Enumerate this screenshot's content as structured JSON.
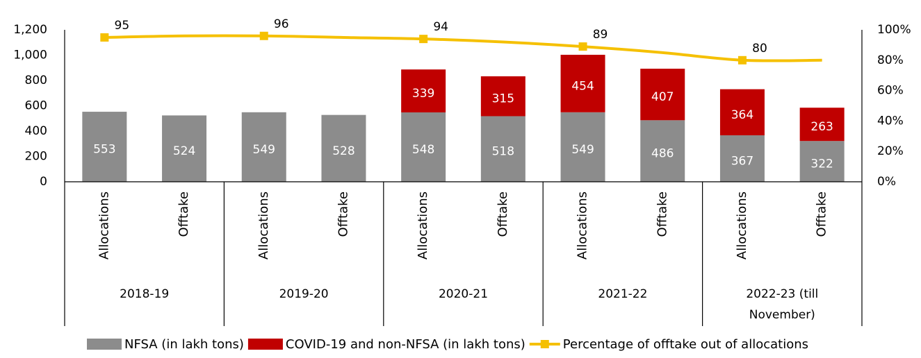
{
  "chart_data": {
    "type": "bar",
    "stacked": true,
    "legend": "bottom",
    "categories": [
      "Allocations",
      "Offtake",
      "Allocations",
      "Offtake",
      "Allocations",
      "Offtake",
      "Allocations",
      "Offtake",
      "Allocations",
      "Offtake"
    ],
    "groups": [
      "2018-19",
      "2019-20",
      "2020-21",
      "2021-22",
      "2022-23 (till November)"
    ],
    "series": [
      {
        "name": "NFSA (in lakh tons)",
        "type": "bar",
        "color": "#8c8c8c",
        "values": [
          553,
          524,
          549,
          528,
          548,
          518,
          549,
          486,
          367,
          322
        ]
      },
      {
        "name": "COVID-19 and non-NFSA (in lakh tons)",
        "type": "bar",
        "color": "#c00000",
        "values": [
          null,
          null,
          null,
          null,
          339,
          315,
          454,
          407,
          364,
          263
        ]
      },
      {
        "name": "Percentage of offtake out of allocations",
        "type": "line",
        "axis": "y2",
        "color": "#f5c000",
        "values": [
          95,
          96,
          96,
          95,
          94,
          92,
          89,
          85,
          80,
          80
        ],
        "markers": [
          true,
          false,
          true,
          false,
          true,
          false,
          true,
          false,
          true,
          false
        ]
      }
    ],
    "ylim": [
      0,
      1200
    ],
    "yticks": [
      0,
      200,
      400,
      600,
      800,
      {
        "value": 1000,
        "label": "1,000"
      },
      {
        "value": 1200,
        "label": "1,200"
      }
    ],
    "y2lim": [
      0,
      100
    ],
    "y2ticks": [
      {
        "value": 0,
        "label": "0%"
      },
      {
        "value": 20,
        "label": "20%"
      },
      {
        "value": 40,
        "label": "40%"
      },
      {
        "value": 60,
        "label": "60%"
      },
      {
        "value": 80,
        "label": "80%"
      },
      {
        "value": 100,
        "label": "100%"
      }
    ]
  }
}
